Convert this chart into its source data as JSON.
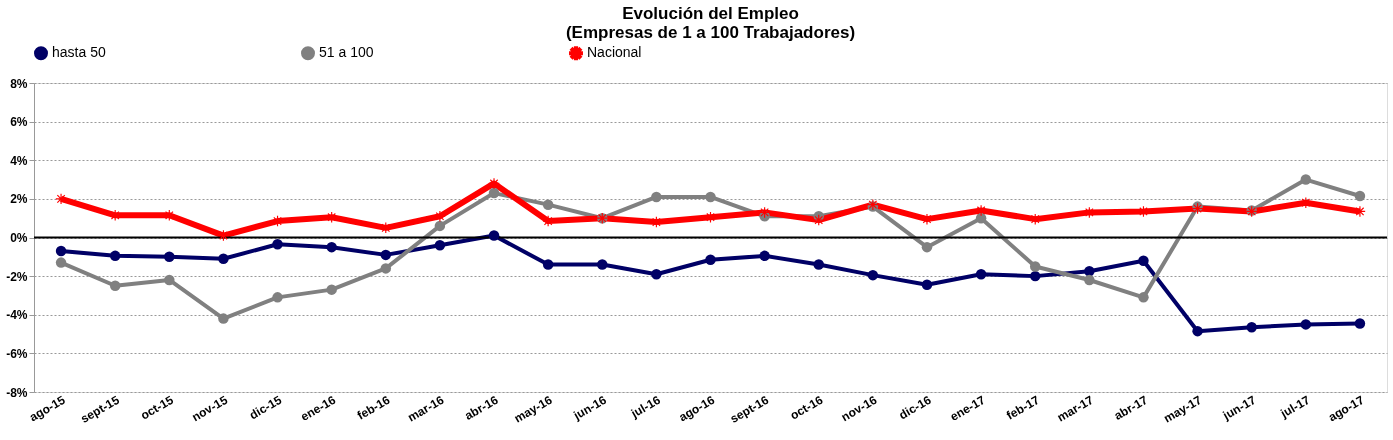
{
  "chart_data": {
    "type": "line",
    "title": "Evolución del Empleo\n(Empresas de 1 a  100 Trabajadores)",
    "categories": [
      "ago-15",
      "sept-15",
      "oct-15",
      "nov-15",
      "dic-15",
      "ene-16",
      "feb-16",
      "mar-16",
      "abr-16",
      "may-16",
      "jun-16",
      "jul-16",
      "ago-16",
      "sept-16",
      "oct-16",
      "nov-16",
      "dic-16",
      "ene-17",
      "feb-17",
      "mar-17",
      "abr-17",
      "may-17",
      "jun-17",
      "jul-17",
      "ago-17"
    ],
    "series": [
      {
        "name": "hasta 50",
        "color": "#000066",
        "marker": "circle",
        "values": [
          -0.7,
          -0.95,
          -1.0,
          -1.1,
          -0.35,
          -0.5,
          -0.9,
          -0.4,
          0.1,
          -1.4,
          -1.4,
          -1.9,
          -1.15,
          -0.95,
          -1.4,
          -1.95,
          -2.45,
          -1.9,
          -2.0,
          -1.75,
          -1.2,
          -4.85,
          -4.65,
          -4.5,
          -4.45
        ]
      },
      {
        "name": "51 a 100",
        "color": "#808080",
        "marker": "circle",
        "values": [
          -1.3,
          -2.5,
          -2.2,
          -4.2,
          -3.1,
          -2.7,
          -1.6,
          0.6,
          2.3,
          1.7,
          1.0,
          2.1,
          2.1,
          1.1,
          1.1,
          1.6,
          -0.5,
          1.0,
          -1.5,
          -2.2,
          -3.1,
          1.6,
          1.4,
          3.0,
          2.15
        ]
      },
      {
        "name": "Nacional",
        "color": "#ff0000",
        "marker": "star",
        "values": [
          2.0,
          1.15,
          1.15,
          0.1,
          0.85,
          1.05,
          0.5,
          1.1,
          2.8,
          0.85,
          1.0,
          0.8,
          1.05,
          1.3,
          0.9,
          1.7,
          0.95,
          1.4,
          0.95,
          1.3,
          1.35,
          1.5,
          1.35,
          1.8,
          1.35
        ]
      }
    ],
    "ylim": [
      -8,
      8
    ],
    "yticks": [
      {
        "value": -8,
        "label": "-8%"
      },
      {
        "value": -6,
        "label": "-6%"
      },
      {
        "value": -4,
        "label": "-4%"
      },
      {
        "value": -2,
        "label": "-2%"
      },
      {
        "value": 0,
        "label": "0%"
      },
      {
        "value": 2,
        "label": "2%"
      },
      {
        "value": 4,
        "label": "4%"
      },
      {
        "value": 6,
        "label": "6%"
      },
      {
        "value": 8,
        "label": "8%"
      }
    ],
    "ref_lines": [
      {
        "axis": "y",
        "value": 0,
        "color": "#000000"
      }
    ],
    "grid": "y",
    "legend": "top",
    "line_style": "solid"
  }
}
